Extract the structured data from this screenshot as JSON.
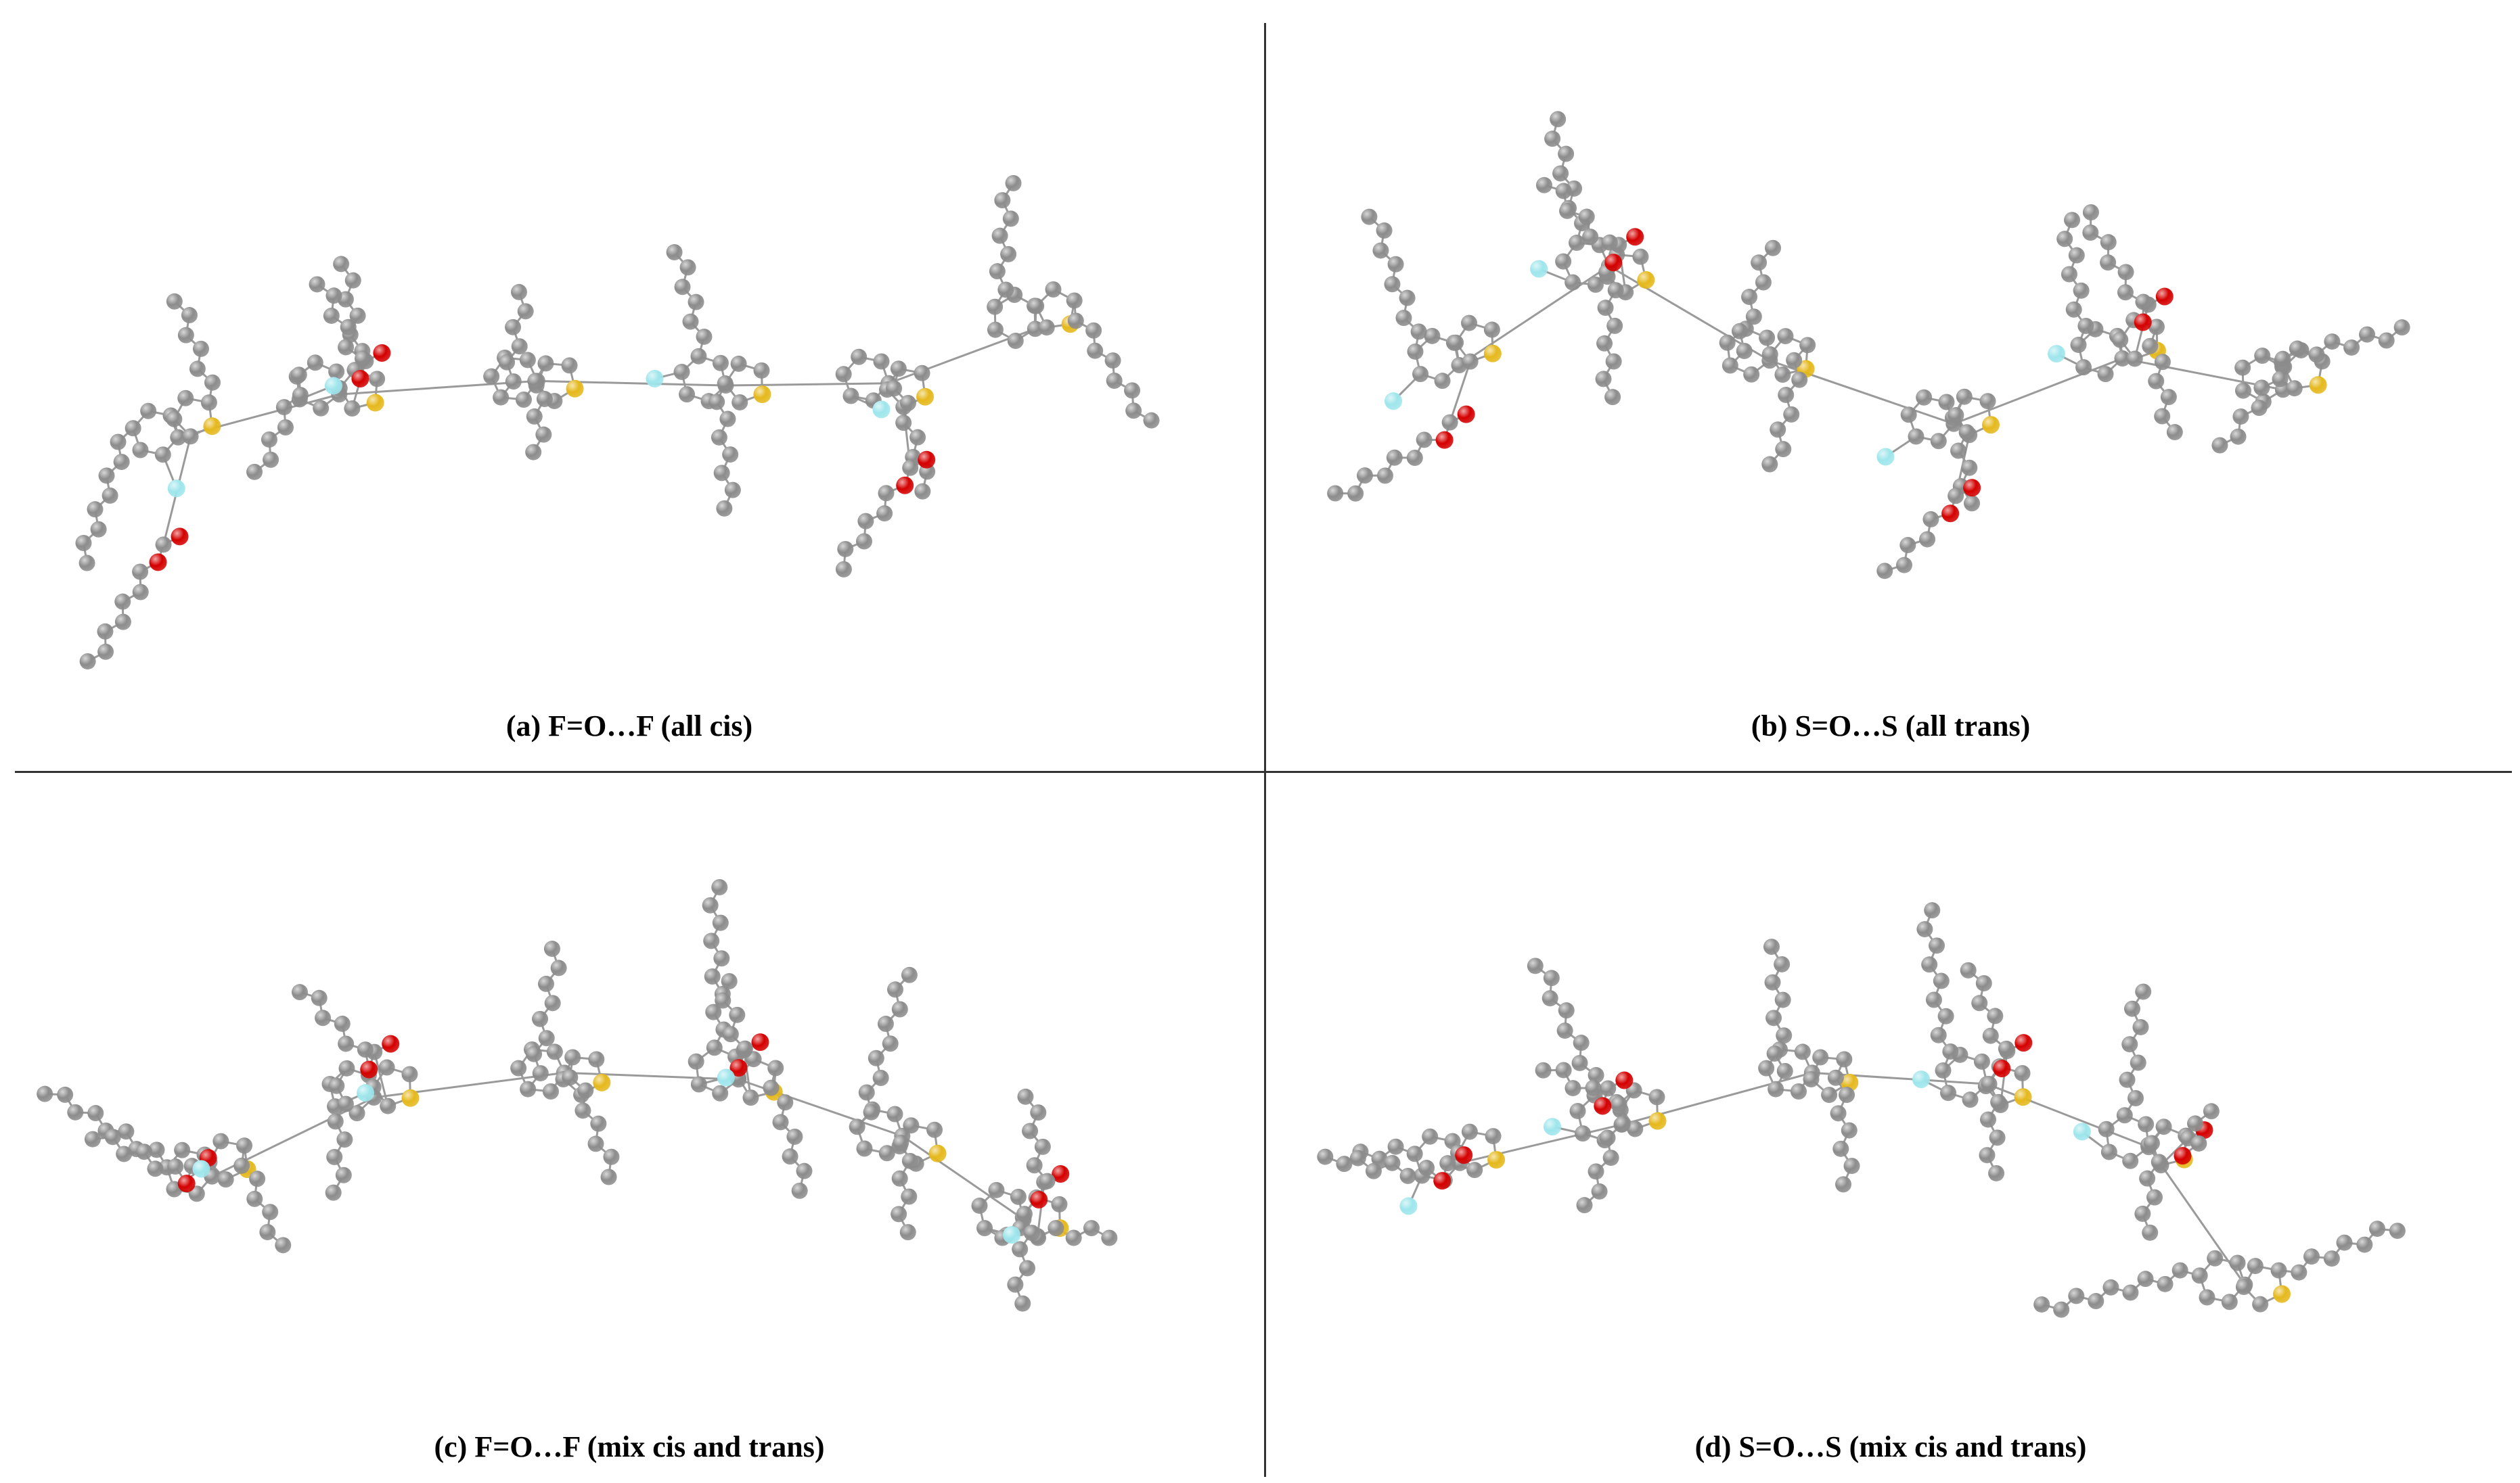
{
  "panels": [
    {
      "id": "a",
      "caption": "(a)  F=O…F (all cis)"
    },
    {
      "id": "b",
      "caption": "(b)  S=O…S (all trans)"
    },
    {
      "id": "c",
      "caption": "(c)  F=O…F (mix cis and trans)"
    },
    {
      "id": "d",
      "caption": "(d)  S=O…S (mix cis and trans)"
    }
  ],
  "atom_colors": {
    "carbon": "#8c8c8c",
    "sulfur": "#e5b81c",
    "oxygen": "#d40000",
    "fluorine": "#9ee6ec",
    "bond": "#9a9a9a"
  }
}
